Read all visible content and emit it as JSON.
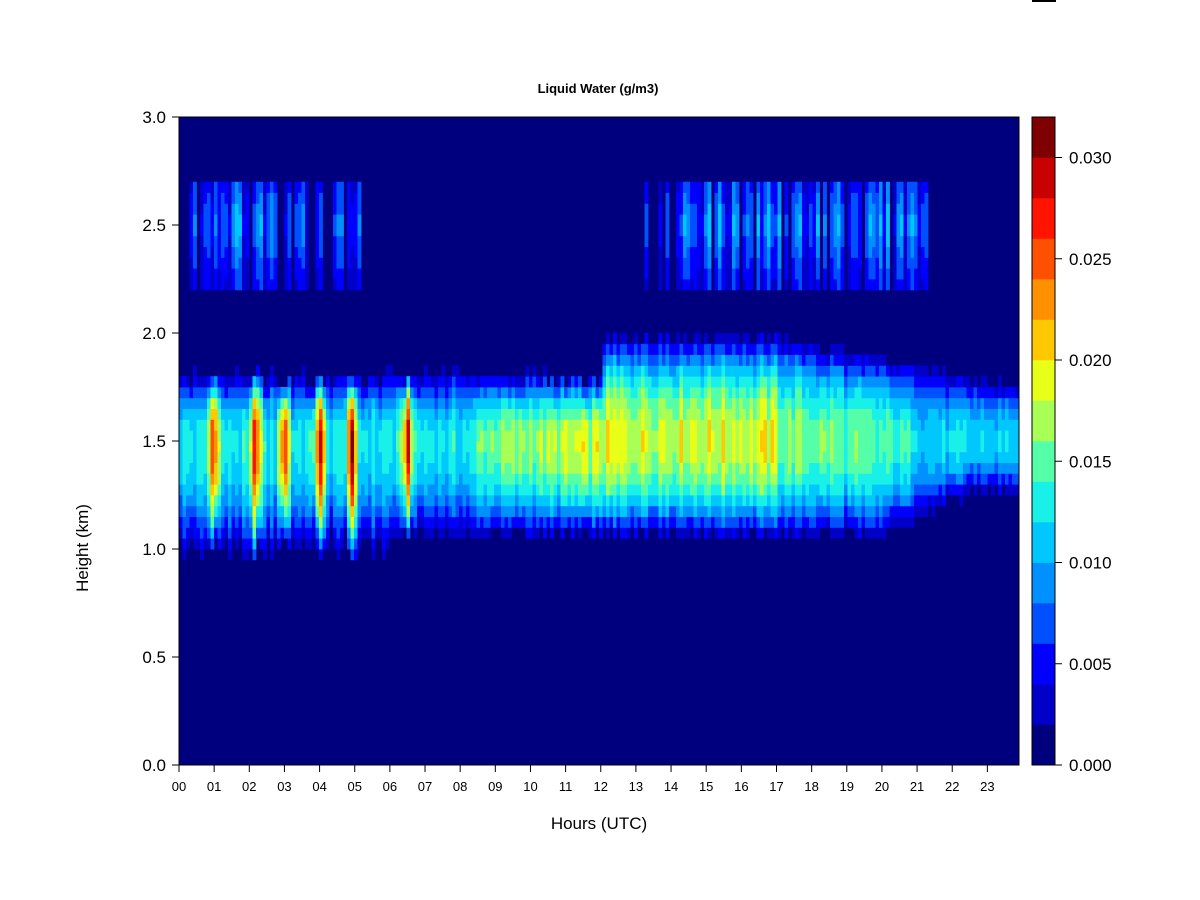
{
  "chart_data": {
    "type": "heatmap",
    "title": "Liquid Water (g/m3)",
    "xlabel": "Hours (UTC)",
    "ylabel": "Height (km)",
    "xlim": [
      0,
      23.9
    ],
    "ylim": [
      0.0,
      3.0
    ],
    "x_ticks": [
      "00",
      "01",
      "02",
      "03",
      "04",
      "05",
      "06",
      "07",
      "08",
      "09",
      "10",
      "11",
      "12",
      "13",
      "14",
      "15",
      "16",
      "17",
      "18",
      "19",
      "20",
      "21",
      "22",
      "23"
    ],
    "y_ticks": [
      "0.0",
      "0.5",
      "1.0",
      "1.5",
      "2.0",
      "2.5",
      "3.0"
    ],
    "colorbar": {
      "range": [
        0.0,
        0.032
      ],
      "ticks": [
        "0.000",
        "0.005",
        "0.010",
        "0.015",
        "0.020",
        "0.025",
        "0.030"
      ],
      "tick_values": [
        0.0,
        0.005,
        0.01,
        0.015,
        0.02,
        0.025,
        0.03
      ],
      "colors": [
        "#00007F",
        "#0000C8",
        "#0000FF",
        "#0050FF",
        "#0090FF",
        "#00C8FF",
        "#18F0E8",
        "#55FFA8",
        "#A8FF55",
        "#E8FF18",
        "#FFC800",
        "#FF9000",
        "#FF5000",
        "#FF1400",
        "#C80000",
        "#7F0000"
      ]
    },
    "features": {
      "lower_cloud_layer": {
        "center_km": 1.5,
        "base_km": [
          1.1,
          1.3
        ],
        "top_km": [
          1.75,
          1.95
        ],
        "x_range": [
          0.0,
          23.9
        ]
      },
      "upper_cloud_layer": {
        "height_range_km": [
          2.2,
          2.7
        ],
        "x_segments": [
          [
            0.2,
            5.2
          ],
          [
            13.2,
            21.3
          ]
        ]
      },
      "peak_times_hr": [
        1.0,
        2.2,
        3.0,
        4.0,
        4.9,
        6.5
      ],
      "peak_value": 0.031
    }
  }
}
